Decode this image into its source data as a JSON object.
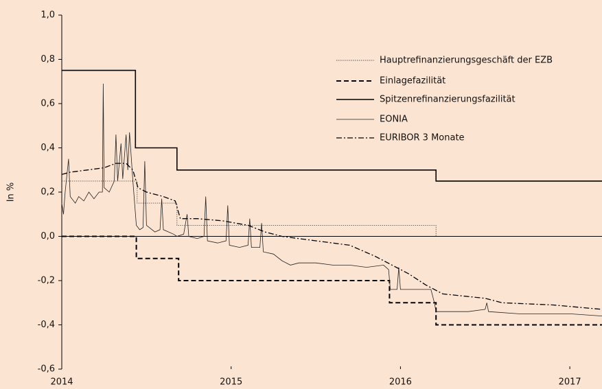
{
  "chart_data": {
    "type": "line",
    "ylabel": "In %",
    "xlim": [
      2014,
      2017.19
    ],
    "xticks": [
      2014,
      2015,
      2016,
      2017
    ],
    "ylim": [
      -0.6,
      1.0
    ],
    "yticks": [
      {
        "value": -0.6,
        "label": "-0,6"
      },
      {
        "value": -0.4,
        "label": "-0,4"
      },
      {
        "value": -0.2,
        "label": "-0,2"
      },
      {
        "value": 0,
        "label": "0,0"
      },
      {
        "value": 0.2,
        "label": "0,2"
      },
      {
        "value": 0.4,
        "label": "0,4"
      },
      {
        "value": 0.6,
        "label": "0,6"
      },
      {
        "value": 0.8,
        "label": "0,8"
      },
      {
        "value": 1.0,
        "label": "1,0"
      }
    ],
    "legend": "upper right",
    "series": [
      {
        "name": "Hauptrefinanzierungsgeschäft der EZB",
        "color": "#555555",
        "dash": "dotted",
        "x": [
          2014,
          2014.445,
          2014.445,
          2014.68,
          2014.68,
          2016.21,
          2016.21
        ],
        "values": [
          0.25,
          0.25,
          0.15,
          0.15,
          0.05,
          0.05,
          0
        ]
      },
      {
        "name": "Einlagefazilität",
        "color": "#000000",
        "dash": "dashed",
        "x": [
          2014,
          2014.44,
          2014.44,
          2014.69,
          2014.69,
          2015.935,
          2015.935,
          2016.21,
          2016.21,
          2017.19
        ],
        "values": [
          0,
          0,
          -0.1,
          -0.1,
          -0.2,
          -0.2,
          -0.3,
          -0.3,
          -0.4,
          -0.4
        ]
      },
      {
        "name": "Spitzenrefinanzierungsfazilität",
        "color": "#000000",
        "dash": "solid",
        "x": [
          2014,
          2014.435,
          2014.435,
          2014.68,
          2014.68,
          2016.21,
          2016.21,
          2017.19
        ],
        "values": [
          0.75,
          0.75,
          0.4,
          0.4,
          0.3,
          0.3,
          0.25,
          0.25
        ]
      },
      {
        "name": "EONIA",
        "color": "#222222",
        "dash": "thin",
        "x": [
          2014.0,
          2014.01,
          2014.02,
          2014.04,
          2014.05,
          2014.08,
          2014.1,
          2014.13,
          2014.16,
          2014.19,
          2014.22,
          2014.24,
          2014.245,
          2014.25,
          2014.28,
          2014.31,
          2014.32,
          2014.33,
          2014.35,
          2014.36,
          2014.38,
          2014.39,
          2014.4,
          2014.42,
          2014.44,
          2014.46,
          2014.48,
          2014.49,
          2014.5,
          2014.55,
          2014.58,
          2014.59,
          2014.6,
          2014.66,
          2014.68,
          2014.72,
          2014.74,
          2014.75,
          2014.8,
          2014.84,
          2014.85,
          2014.86,
          2014.92,
          2014.97,
          2014.98,
          2014.99,
          2015.05,
          2015.1,
          2015.11,
          2015.12,
          2015.17,
          2015.18,
          2015.19,
          2015.25,
          2015.3,
          2015.35,
          2015.4,
          2015.5,
          2015.6,
          2015.7,
          2015.8,
          2015.9,
          2015.93,
          2015.94,
          2015.98,
          2015.99,
          2016.0,
          2016.1,
          2016.18,
          2016.2,
          2016.21,
          2016.4,
          2016.5,
          2016.51,
          2016.52,
          2016.7,
          2016.9,
          2017.0,
          2017.19
        ],
        "values": [
          0.15,
          0.1,
          0.2,
          0.35,
          0.18,
          0.15,
          0.18,
          0.16,
          0.2,
          0.17,
          0.2,
          0.2,
          0.69,
          0.22,
          0.2,
          0.25,
          0.46,
          0.25,
          0.42,
          0.26,
          0.46,
          0.3,
          0.47,
          0.25,
          0.05,
          0.03,
          0.04,
          0.34,
          0.05,
          0.02,
          0.03,
          0.17,
          0.03,
          0.01,
          0.0,
          0.01,
          0.1,
          0.0,
          -0.01,
          0.0,
          0.18,
          -0.02,
          -0.03,
          -0.02,
          0.14,
          -0.04,
          -0.05,
          -0.04,
          0.08,
          -0.05,
          -0.05,
          0.06,
          -0.07,
          -0.08,
          -0.11,
          -0.13,
          -0.12,
          -0.12,
          -0.13,
          -0.13,
          -0.14,
          -0.13,
          -0.15,
          -0.24,
          -0.24,
          -0.14,
          -0.24,
          -0.24,
          -0.24,
          -0.3,
          -0.34,
          -0.34,
          -0.33,
          -0.3,
          -0.34,
          -0.35,
          -0.35,
          -0.35,
          -0.36
        ]
      },
      {
        "name": "EURIBOR 3 Monate",
        "color": "#000000",
        "dash": "dashdot",
        "x": [
          2014.0,
          2014.05,
          2014.15,
          2014.25,
          2014.32,
          2014.38,
          2014.42,
          2014.45,
          2014.5,
          2014.6,
          2014.67,
          2014.7,
          2014.8,
          2014.95,
          2015.1,
          2015.2,
          2015.3,
          2015.5,
          2015.7,
          2015.85,
          2015.95,
          2016.05,
          2016.15,
          2016.25,
          2016.5,
          2016.6,
          2016.9,
          2017.19
        ],
        "values": [
          0.28,
          0.29,
          0.3,
          0.31,
          0.33,
          0.33,
          0.3,
          0.22,
          0.2,
          0.18,
          0.16,
          0.08,
          0.08,
          0.07,
          0.05,
          0.02,
          0.0,
          -0.02,
          -0.04,
          -0.09,
          -0.13,
          -0.17,
          -0.22,
          -0.26,
          -0.28,
          -0.3,
          -0.31,
          -0.33
        ]
      }
    ]
  }
}
